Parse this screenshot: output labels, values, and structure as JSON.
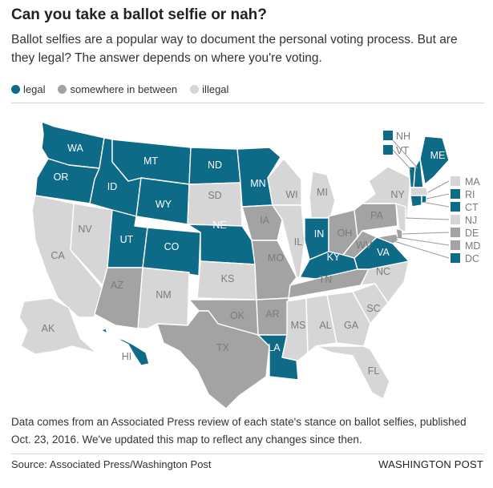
{
  "title": "Can you take a ballot selfie or nah?",
  "subtitle": "Ballot selfies are a popular way to document the personal voting process. But are they legal? The answer depends on where you're voting.",
  "colors": {
    "legal": "#0e6b87",
    "between": "#a3a3a3",
    "illegal": "#d6d6d6",
    "label_dark": "#ffffff",
    "label_light": "#7b7b7b"
  },
  "legend": [
    {
      "key": "legal",
      "label": "legal"
    },
    {
      "key": "between",
      "label": "somewhere in between"
    },
    {
      "key": "illegal",
      "label": "illegal"
    }
  ],
  "states": {
    "WA": "legal",
    "OR": "legal",
    "ID": "legal",
    "MT": "legal",
    "WY": "legal",
    "UT": "legal",
    "CO": "legal",
    "ND": "legal",
    "NE": "legal",
    "MN": "legal",
    "LA": "legal",
    "IN": "legal",
    "KY": "legal",
    "VA": "legal",
    "ME": "legal",
    "NH": "legal",
    "VT": "legal",
    "RI": "legal",
    "CT": "legal",
    "DC": "legal",
    "HI": "legal",
    "AZ": "between",
    "TX": "between",
    "OK": "between",
    "IA": "between",
    "MO": "between",
    "AR": "between",
    "TN": "between",
    "OH": "between",
    "PA": "between",
    "WV": "between",
    "DE": "between",
    "MD": "between",
    "CA": "illegal",
    "NV": "illegal",
    "NM": "illegal",
    "SD": "illegal",
    "KS": "illegal",
    "WI": "illegal",
    "IL": "illegal",
    "MI": "illegal",
    "MS": "illegal",
    "AL": "illegal",
    "GA": "illegal",
    "FL": "illegal",
    "SC": "illegal",
    "NC": "illegal",
    "NY": "illegal",
    "NJ": "illegal",
    "MA": "illegal",
    "AK": "illegal"
  },
  "note": "Data comes from an Associated Press review of each state's stance on ballot selfies, published Oct. 23, 2016. We've updated this map to reflect any changes since then.",
  "source": "Source: Associated Press/Washington Post",
  "credit": "WASHINGTON POST"
}
